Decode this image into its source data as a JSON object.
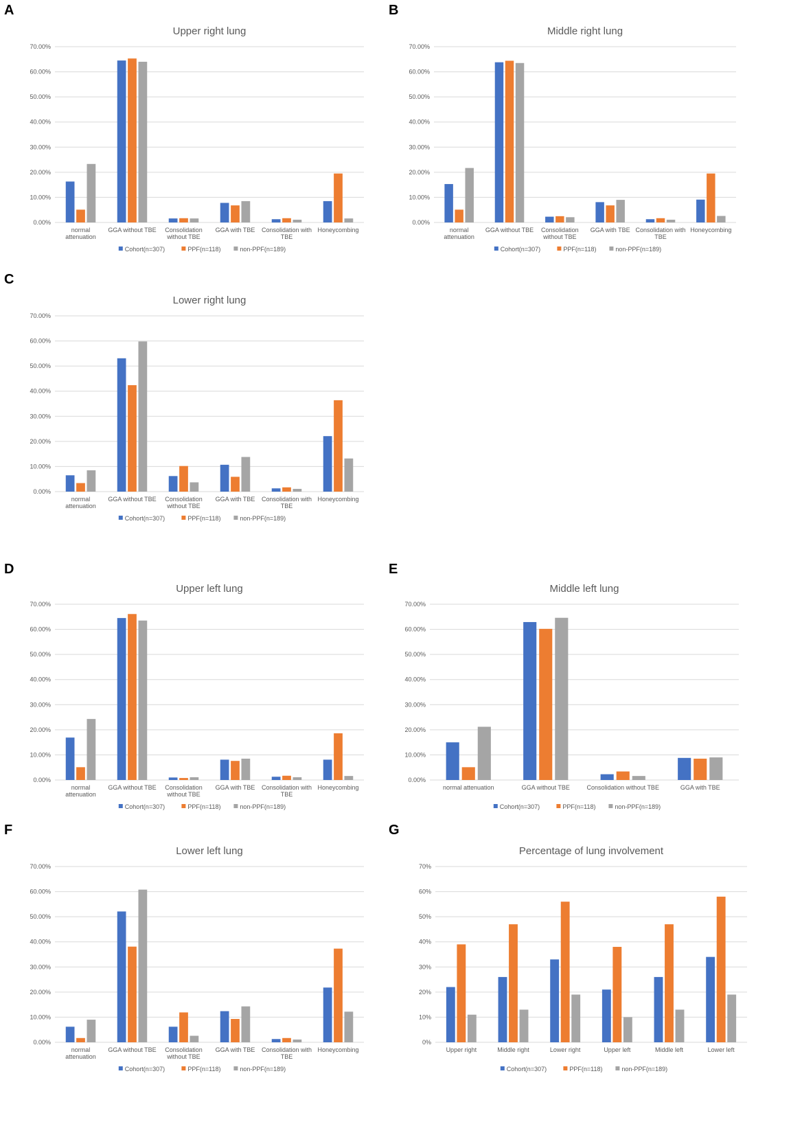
{
  "series_names": [
    "Cohort(n=307)",
    "PPF(n=118)",
    "non-PPF(n=189)"
  ],
  "colors": {
    "cohort": "#4472C4",
    "ppf": "#ED7D31",
    "non_ppf": "#A5A5A5",
    "grid": "#D9D9D9",
    "text": "#595959"
  },
  "panels": [
    {
      "letter": "A",
      "chart_data": {
        "type": "bar",
        "title": "Upper right lung",
        "categories": [
          [
            "normal",
            "attenuation"
          ],
          [
            "GGA without TBE"
          ],
          [
            "Consolidation",
            "without TBE"
          ],
          [
            "GGA with TBE"
          ],
          [
            "Consolidation with",
            "TBE"
          ],
          [
            "Honeycombing"
          ]
        ],
        "series": [
          {
            "name": "Cohort(n=307)",
            "values": [
              16.3,
              64.5,
              1.6,
              7.8,
              1.3,
              8.5
            ]
          },
          {
            "name": "PPF(n=118)",
            "values": [
              5.1,
              65.3,
              1.7,
              6.8,
              1.7,
              19.5
            ]
          },
          {
            "name": "non-PPF(n=189)",
            "values": [
              23.3,
              64.0,
              1.6,
              8.5,
              1.1,
              1.6
            ]
          }
        ],
        "ylim": [
          0,
          70
        ],
        "yticks": [
          0,
          10,
          20,
          30,
          40,
          50,
          60,
          70
        ],
        "tick_format": "2dp",
        "legend": "bottom"
      }
    },
    {
      "letter": "B",
      "chart_data": {
        "type": "bar",
        "title": "Middle right lung",
        "categories": [
          [
            "normal",
            "attenuation"
          ],
          [
            "GGA without TBE"
          ],
          [
            "Consolidation",
            "without TBE"
          ],
          [
            "GGA with TBE"
          ],
          [
            "Consolidation with",
            "TBE"
          ],
          [
            "Honeycombing"
          ]
        ],
        "series": [
          {
            "name": "Cohort(n=307)",
            "values": [
              15.3,
              63.8,
              2.3,
              8.1,
              1.3,
              9.1
            ]
          },
          {
            "name": "PPF(n=118)",
            "values": [
              5.1,
              64.4,
              2.5,
              6.8,
              1.7,
              19.5
            ]
          },
          {
            "name": "non-PPF(n=189)",
            "values": [
              21.7,
              63.5,
              2.1,
              9.0,
              1.1,
              2.6
            ]
          }
        ],
        "ylim": [
          0,
          70
        ],
        "yticks": [
          0,
          10,
          20,
          30,
          40,
          50,
          60,
          70
        ],
        "tick_format": "2dp",
        "legend": "bottom"
      }
    },
    {
      "letter": "C",
      "chart_data": {
        "type": "bar",
        "title": "Lower right lung",
        "categories": [
          [
            "normal",
            "attenuation"
          ],
          [
            "GGA without TBE"
          ],
          [
            "Consolidation",
            "without TBE"
          ],
          [
            "GGA with TBE"
          ],
          [
            "Consolidation with",
            "TBE"
          ],
          [
            "Honeycombing"
          ]
        ],
        "series": [
          {
            "name": "Cohort(n=307)",
            "values": [
              6.5,
              53.1,
              6.2,
              10.7,
              1.3,
              22.1
            ]
          },
          {
            "name": "PPF(n=118)",
            "values": [
              3.4,
              42.4,
              10.2,
              5.9,
              1.7,
              36.4
            ]
          },
          {
            "name": "non-PPF(n=189)",
            "values": [
              8.5,
              59.8,
              3.7,
              13.8,
              1.1,
              13.2
            ]
          }
        ],
        "ylim": [
          0,
          70
        ],
        "yticks": [
          0,
          10,
          20,
          30,
          40,
          50,
          60,
          70
        ],
        "tick_format": "2dp",
        "legend": "bottom"
      }
    },
    {
      "letter": "D",
      "chart_data": {
        "type": "bar",
        "title": "Upper left lung",
        "categories": [
          [
            "normal",
            "attenuation"
          ],
          [
            "GGA without TBE"
          ],
          [
            "Consolidation",
            "without TBE"
          ],
          [
            "GGA with TBE"
          ],
          [
            "Consolidation with",
            "TBE"
          ],
          [
            "Honeycombing"
          ]
        ],
        "series": [
          {
            "name": "Cohort(n=307)",
            "values": [
              16.9,
              64.5,
              1.0,
              8.1,
              1.3,
              8.1
            ]
          },
          {
            "name": "PPF(n=118)",
            "values": [
              5.1,
              66.1,
              0.8,
              7.6,
              1.7,
              18.6
            ]
          },
          {
            "name": "non-PPF(n=189)",
            "values": [
              24.3,
              63.5,
              1.1,
              8.5,
              1.1,
              1.6
            ]
          }
        ],
        "ylim": [
          0,
          70
        ],
        "yticks": [
          0,
          10,
          20,
          30,
          40,
          50,
          60,
          70
        ],
        "tick_format": "2dp",
        "legend": "bottom"
      }
    },
    {
      "letter": "E",
      "chart_data": {
        "type": "bar",
        "title": "Middle left lung",
        "categories": [
          [
            "normal attenuation"
          ],
          [
            "GGA without TBE"
          ],
          [
            "Consolidation without TBE"
          ],
          [
            "GGA with TBE"
          ]
        ],
        "series": [
          {
            "name": "Cohort(n=307)",
            "values": [
              15.0,
              62.9,
              2.3,
              8.8
            ]
          },
          {
            "name": "PPF(n=118)",
            "values": [
              5.1,
              60.2,
              3.4,
              8.5
            ]
          },
          {
            "name": "non-PPF(n=189)",
            "values": [
              21.2,
              64.6,
              1.6,
              9.0
            ]
          }
        ],
        "ylim": [
          0,
          70
        ],
        "yticks": [
          0,
          10,
          20,
          30,
          40,
          50,
          60,
          70
        ],
        "tick_format": "2dp",
        "legend": "bottom"
      }
    },
    {
      "letter": "F",
      "chart_data": {
        "type": "bar",
        "title": "Lower left lung",
        "categories": [
          [
            "normal",
            "attenuation"
          ],
          [
            "GGA without TBE"
          ],
          [
            "Consolidation",
            "without TBE"
          ],
          [
            "GGA with TBE"
          ],
          [
            "Consolidation with",
            "TBE"
          ],
          [
            "Honeycombing"
          ]
        ],
        "series": [
          {
            "name": "Cohort(n=307)",
            "values": [
              6.2,
              52.1,
              6.2,
              12.4,
              1.3,
              21.8
            ]
          },
          {
            "name": "PPF(n=118)",
            "values": [
              1.7,
              38.1,
              11.9,
              9.3,
              1.7,
              37.3
            ]
          },
          {
            "name": "non-PPF(n=189)",
            "values": [
              9.0,
              60.8,
              2.6,
              14.3,
              1.1,
              12.2
            ]
          }
        ],
        "ylim": [
          0,
          70
        ],
        "yticks": [
          0,
          10,
          20,
          30,
          40,
          50,
          60,
          70
        ],
        "tick_format": "2dp",
        "legend": "bottom"
      }
    },
    {
      "letter": "G",
      "chart_data": {
        "type": "bar",
        "title": "Percentage of lung involvement",
        "categories": [
          [
            "Upper right"
          ],
          [
            "Middle right"
          ],
          [
            "Lower right"
          ],
          [
            "Upper left"
          ],
          [
            "Middle left"
          ],
          [
            "Lower left"
          ]
        ],
        "series": [
          {
            "name": "Cohort(n=307)",
            "values": [
              22,
              26,
              33,
              21,
              26,
              34
            ]
          },
          {
            "name": "PPF(n=118)",
            "values": [
              39,
              47,
              56,
              38,
              47,
              58
            ]
          },
          {
            "name": "non-PPF(n=189)",
            "values": [
              11,
              13,
              19,
              10,
              13,
              19
            ]
          }
        ],
        "ylim": [
          0,
          70
        ],
        "yticks": [
          0,
          10,
          20,
          30,
          40,
          50,
          60,
          70
        ],
        "tick_format": "int",
        "legend": "bottom"
      }
    }
  ]
}
